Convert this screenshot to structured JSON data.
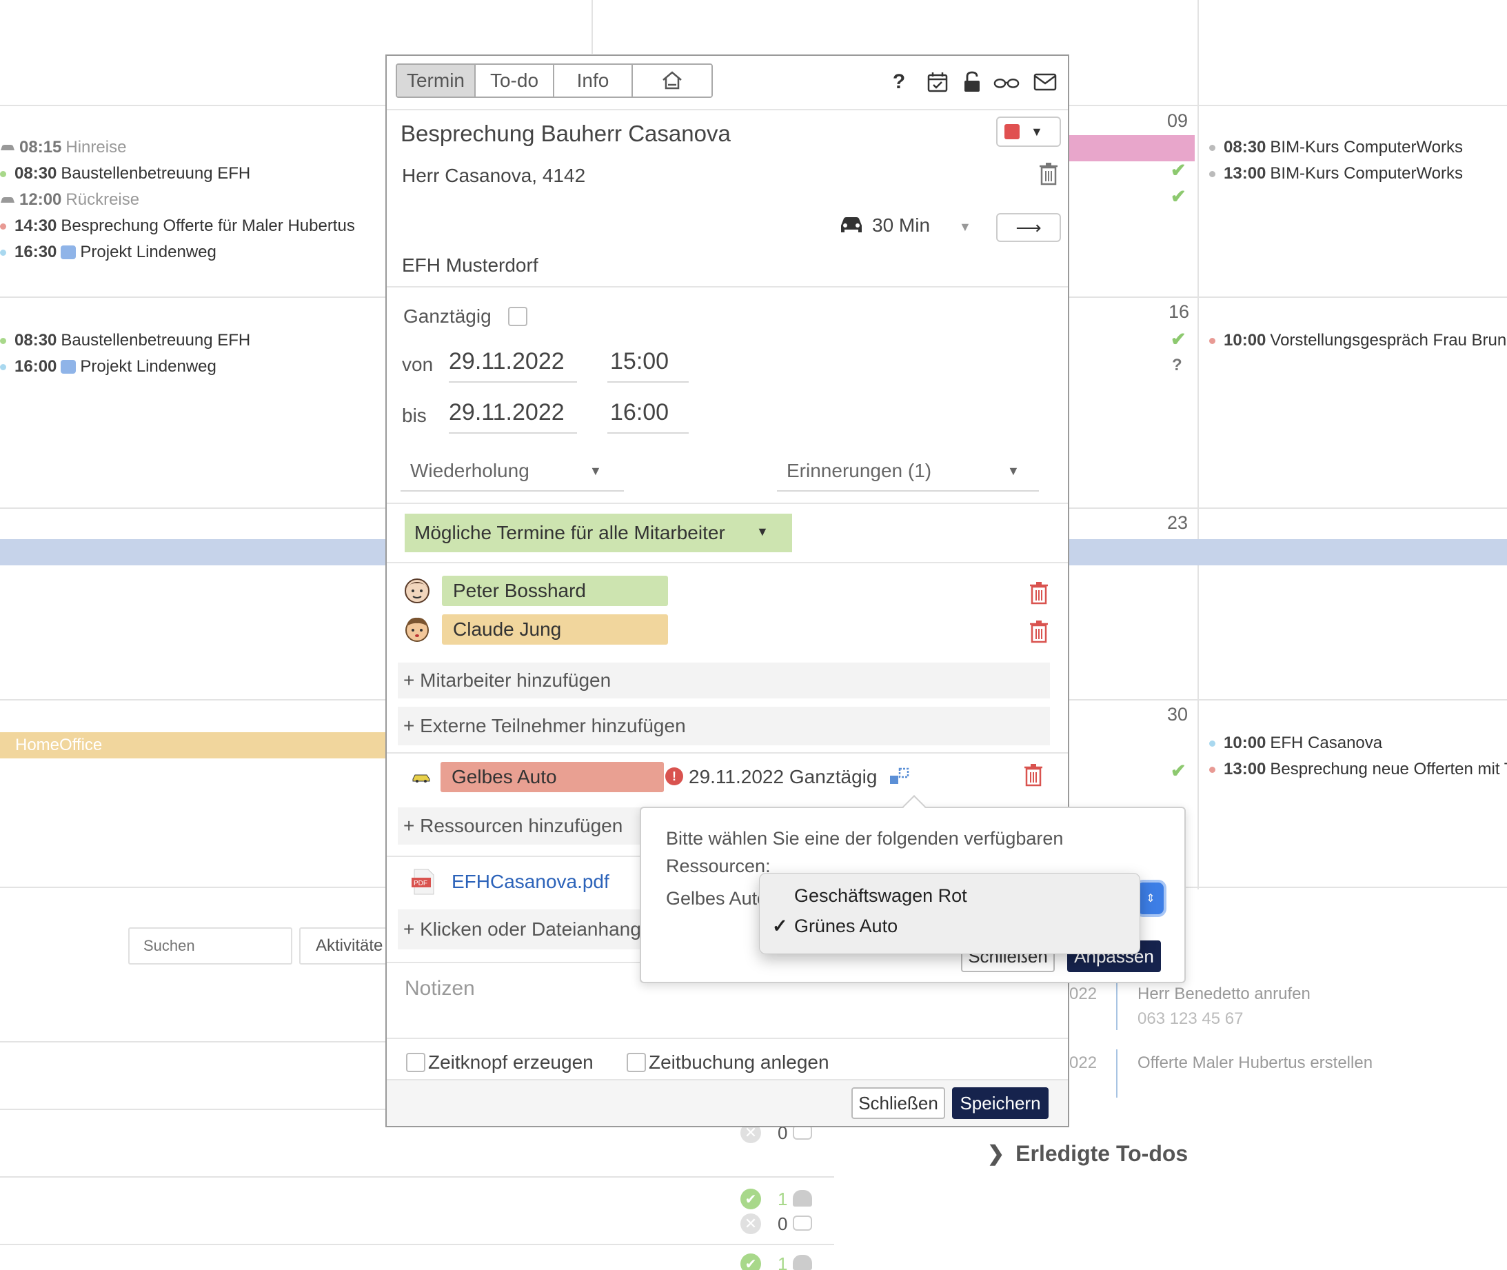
{
  "calendar": {
    "day_numbers": [
      "09",
      "16",
      "23",
      "30"
    ],
    "week1_left": [
      {
        "time": "08:15",
        "text": "Hinreise",
        "style": "car"
      },
      {
        "time": "08:30",
        "text": "Baustellenbetreuung EFH",
        "style": "green"
      },
      {
        "time": "12:00",
        "text": "Rückreise",
        "style": "car"
      },
      {
        "time": "14:30",
        "text": "Besprechung Offerte für Maler Hubertus",
        "style": "red"
      },
      {
        "time": "16:30",
        "text": "Projekt Lindenweg",
        "style": "video"
      }
    ],
    "week2_left": [
      {
        "time": "08:30",
        "text": "Baustellenbetreuung EFH",
        "style": "green"
      },
      {
        "time": "16:00",
        "text": "Projekt Lindenweg",
        "style": "video"
      }
    ],
    "week1_right": [
      {
        "time": "08:30",
        "text": "BIM-Kurs ComputerWorks"
      },
      {
        "time": "13:00",
        "text": "BIM-Kurs ComputerWorks"
      }
    ],
    "week2_right": [
      {
        "time": "10:00",
        "text": "Vorstellungsgespräch Frau Brunn"
      }
    ],
    "week4_right": [
      {
        "time": "10:00",
        "text": "EFH Casanova",
        "dot": "#a9d8ef"
      },
      {
        "time": "13:00",
        "text": "Besprechung neue Offerten mit T",
        "dot": "#e89a94"
      }
    ],
    "homeoffice_label": "HomeOffice",
    "question_mark": "?",
    "search_placeholder": "Suchen",
    "activities_label": "Aktivitäte",
    "todos": [
      {
        "date": "022",
        "title": "Herr Benedetto anrufen",
        "sub": "063 123 45 67"
      },
      {
        "date": "022",
        "title": "Offerte Maler Hubertus erstellen",
        "sub": ""
      }
    ],
    "done_todos_label": "Erledigte To-dos",
    "stats": [
      {
        "people": "1",
        "cars": "0"
      },
      {
        "people": "1",
        "cars": "0"
      },
      {
        "people": "1",
        "cars": ""
      }
    ],
    "colors": {
      "pink_band": "#e8a6cb",
      "blue_band": "#c6d3ea",
      "homeoffice": "#f1d69d"
    }
  },
  "dialog": {
    "tabs": [
      "Termin",
      "To-do",
      "Info"
    ],
    "active_tab": "Termin",
    "toolbar_icons": [
      "home-icon",
      "help-icon",
      "calendar-check-icon",
      "unlock-icon",
      "glasses-icon",
      "mail-icon"
    ],
    "help_label": "?",
    "title": "Besprechung Bauherr Casanova",
    "contact": "Herr Casanova, 4142",
    "travel_time": "30 Min",
    "location": "EFH Musterdorf",
    "allday_label": "Ganztägig",
    "from_label": "von",
    "from_date": "29.11.2022",
    "from_time": "15:00",
    "to_label": "bis",
    "to_date": "29.11.2022",
    "to_time": "16:00",
    "repeat_label": "Wiederholung",
    "reminders_label": "Erinnerungen (1)",
    "possible_dates_label": "Mögliche Termine für alle Mitarbeiter",
    "employees": [
      {
        "name": "Peter Bosshard",
        "color": "#cde4b0"
      },
      {
        "name": "Claude Jung",
        "color": "#f1d69d"
      }
    ],
    "add_employee_label": "+ Mitarbeiter hinzufügen",
    "add_external_label": "+ Externe Teilnehmer hinzufügen",
    "resource": {
      "name": "Gelbes Auto",
      "color": "#e9a092",
      "conflict": "29.11.2022 Ganztägig"
    },
    "add_resource_label": "+ Ressourcen hinzufügen",
    "attachment": "EFHCasanova.pdf",
    "add_attachment_label": "+ Klicken oder Dateianhang",
    "notes_placeholder": "Notizen",
    "timebutton_label": "Zeitknopf erzeugen",
    "timebooking_label": "Zeitbuchung anlegen",
    "close_label": "Schließen",
    "save_label": "Speichern",
    "accent_color": "#16234d"
  },
  "popover": {
    "message": "Bitte wählen Sie eine der folgenden verfügbaren Ressourcen:",
    "select_label": "Gelbes Auto",
    "close_label": "Schließen",
    "apply_label": "Anpassen",
    "options": [
      "Geschäftswagen Rot",
      "Grünes Auto"
    ],
    "selected_option": "Grünes Auto"
  }
}
